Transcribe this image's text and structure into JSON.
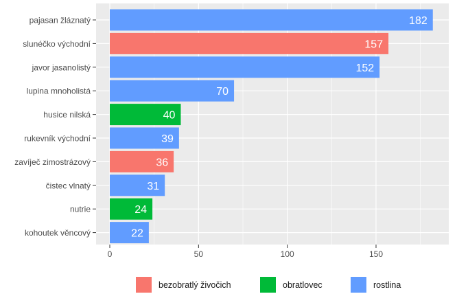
{
  "chart_data": {
    "type": "bar",
    "orientation": "horizontal",
    "categories": [
      "pajasan žláznatý",
      "slunéčko východní",
      "javor jasanolistý",
      "lupina mnoholistá",
      "husice nilská",
      "rukevník východní",
      "zavíječ zimostrázový",
      "čistec vlnatý",
      "nutrie",
      "kohoutek věncový"
    ],
    "values": [
      182,
      157,
      152,
      70,
      40,
      39,
      36,
      31,
      24,
      22
    ],
    "groups": [
      "rostlina",
      "bezobratlý živočich",
      "rostlina",
      "rostlina",
      "obratlovec",
      "rostlina",
      "bezobratlý živočich",
      "rostlina",
      "obratlovec",
      "rostlina"
    ],
    "xlim": [
      0,
      190
    ],
    "xticks": [
      0,
      50,
      100,
      150
    ],
    "grid": true,
    "legend": {
      "position": "bottom",
      "entries": [
        {
          "name": "bezobratlý živočich",
          "color": "#F8766D"
        },
        {
          "name": "obratlovec",
          "color": "#00BA38"
        },
        {
          "name": "rostlina",
          "color": "#619CFF"
        }
      ]
    },
    "xlabel": "",
    "ylabel": "",
    "title": ""
  }
}
